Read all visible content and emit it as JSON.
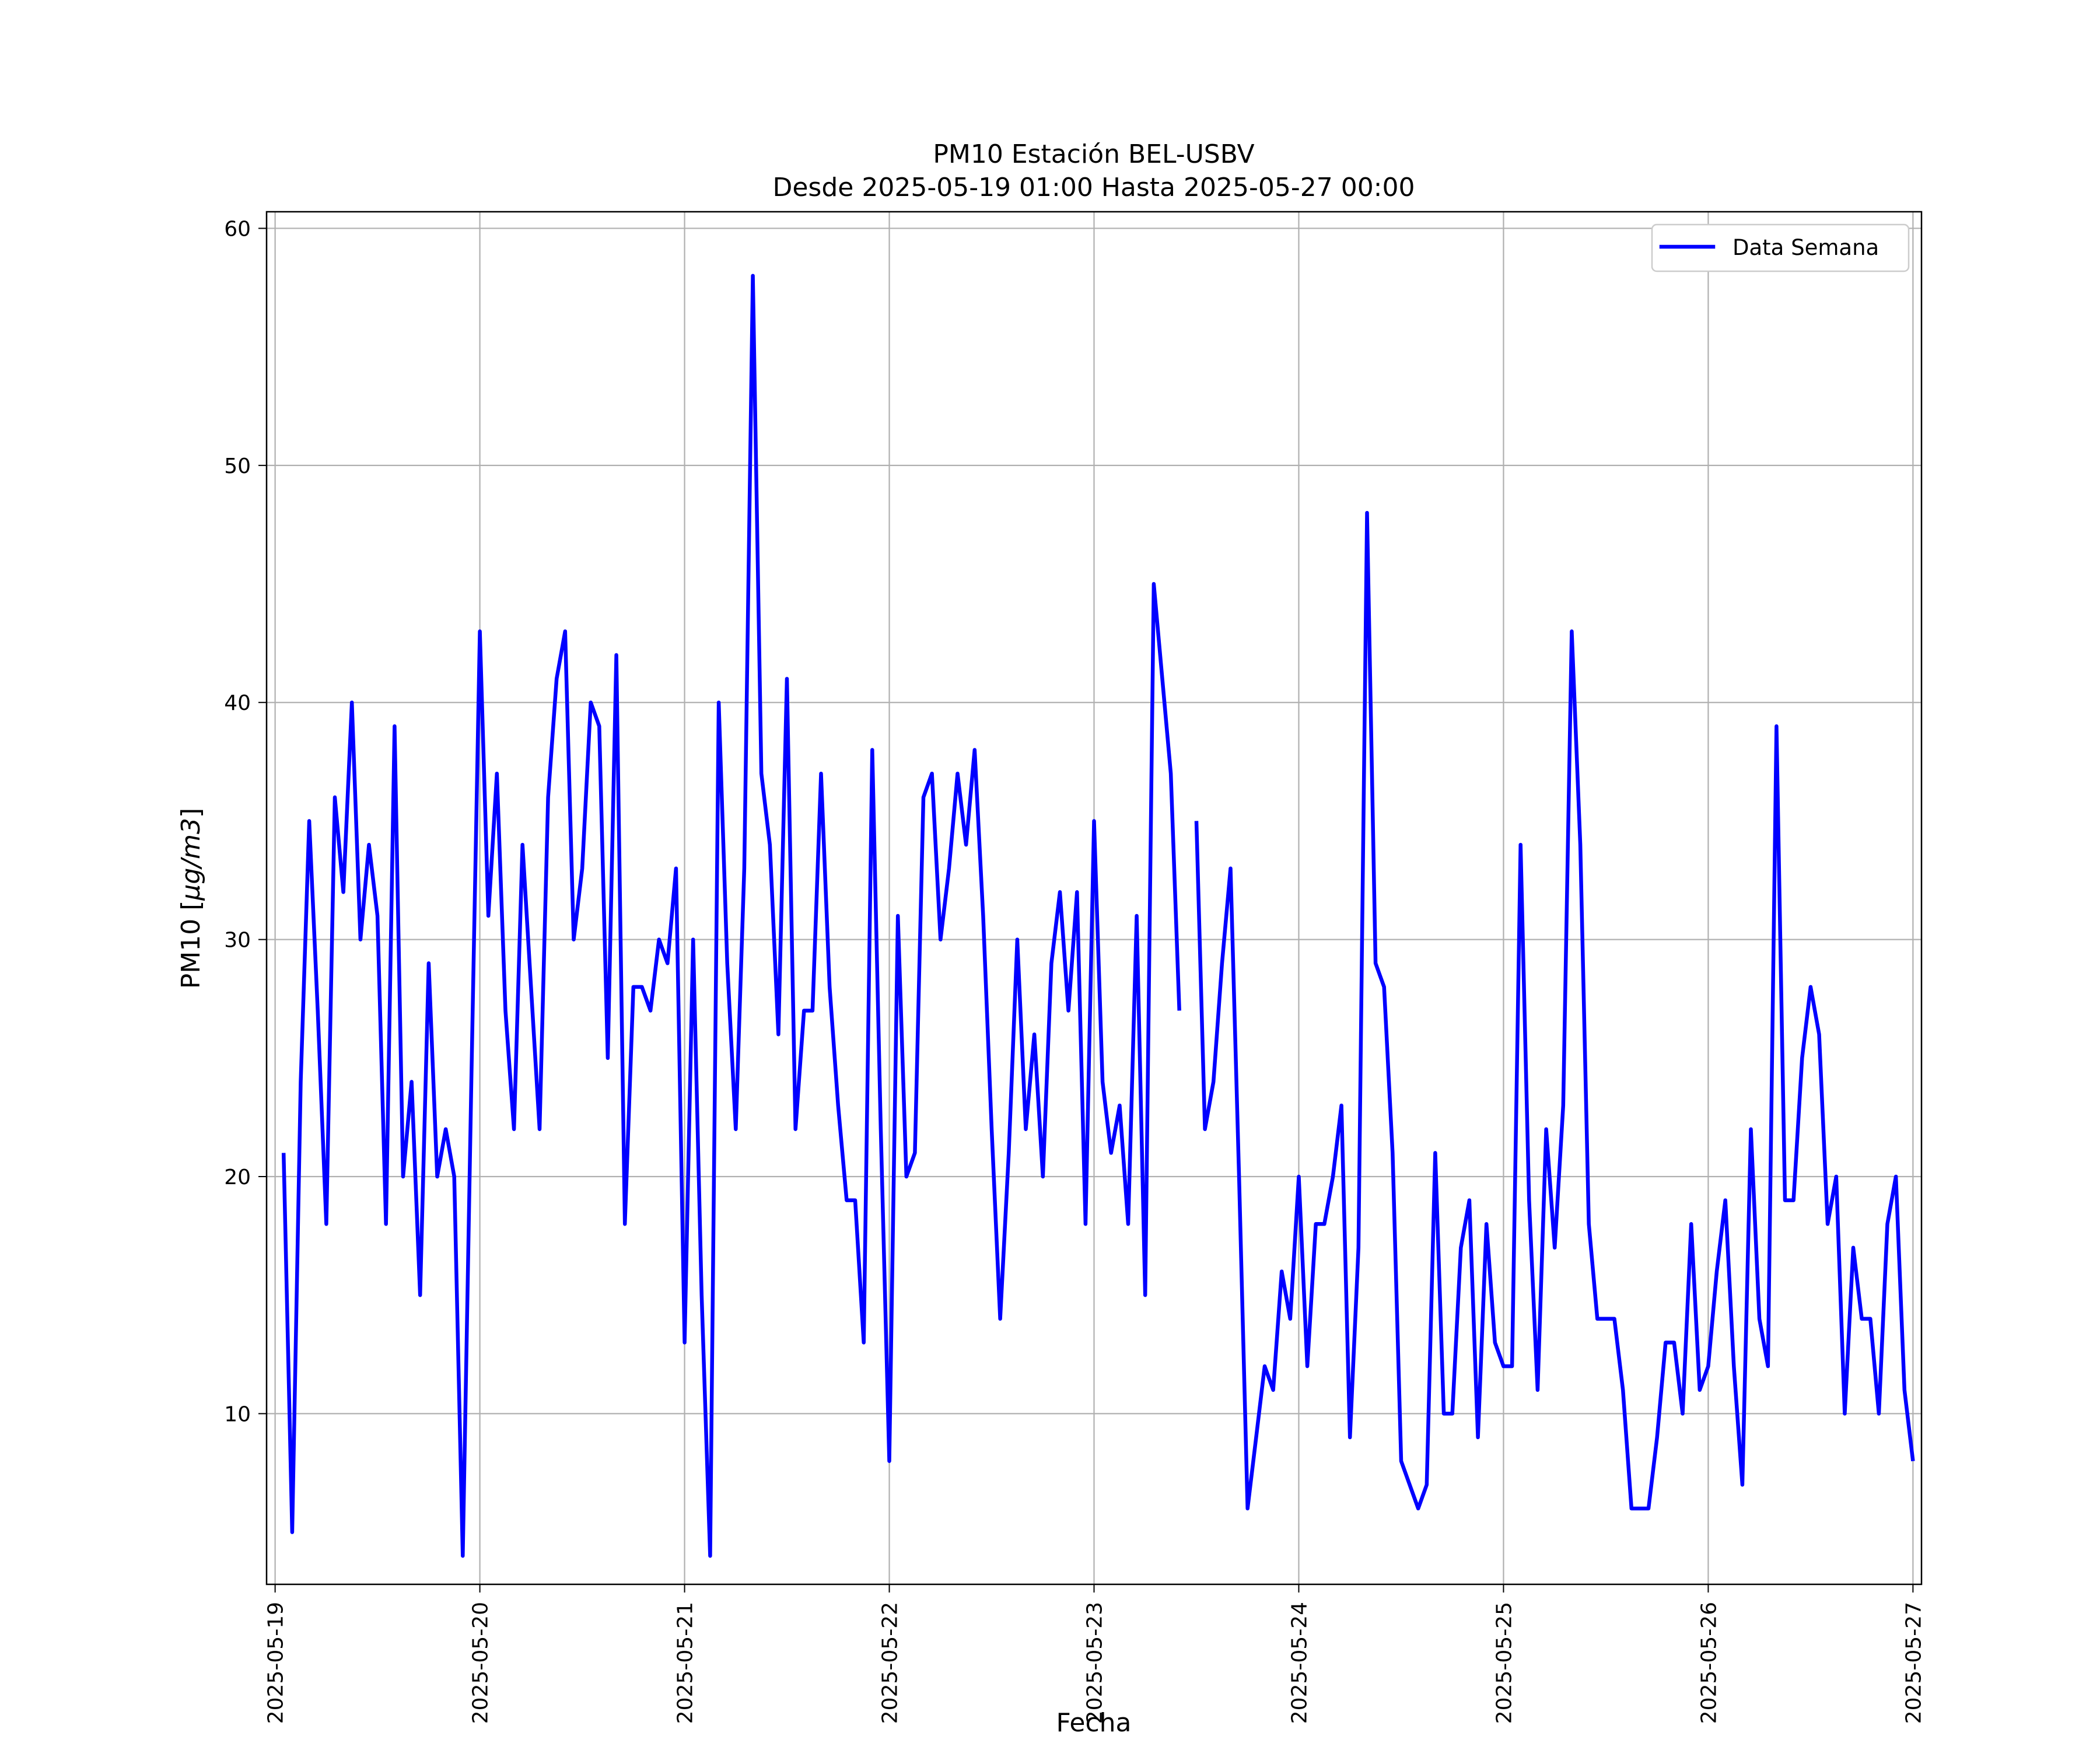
{
  "chart_data": {
    "type": "line",
    "title": "PM10 Estación BEL-USBV",
    "subtitle": "Desde 2025-05-19 01:00 Hasta 2025-05-27 00:00",
    "xlabel": "Fecha",
    "ylabel_prefix": "PM10 [",
    "ylabel_unit": "µg/m3",
    "ylabel_suffix": "]",
    "xlim": [
      "2025-05-18 23:00",
      "2025-05-27 01:00"
    ],
    "ylim": [
      2.8,
      60.7
    ],
    "x_ticks": [
      "2025-05-19",
      "2025-05-20",
      "2025-05-21",
      "2025-05-22",
      "2025-05-23",
      "2025-05-24",
      "2025-05-25",
      "2025-05-26",
      "2025-05-27"
    ],
    "y_ticks": [
      10,
      20,
      30,
      40,
      50,
      60
    ],
    "grid": true,
    "legend_position": "upper right",
    "series": [
      {
        "name": "Data Semana",
        "color": "#0000ff",
        "points": [
          [
            "2025-05-19 01:00",
            21
          ],
          [
            "2025-05-19 02:00",
            5
          ],
          [
            "2025-05-19 03:00",
            24
          ],
          [
            "2025-05-19 04:00",
            35
          ],
          [
            "2025-05-19 05:00",
            27
          ],
          [
            "2025-05-19 06:00",
            18
          ],
          [
            "2025-05-19 07:00",
            36
          ],
          [
            "2025-05-19 08:00",
            32
          ],
          [
            "2025-05-19 09:00",
            40
          ],
          [
            "2025-05-19 10:00",
            30
          ],
          [
            "2025-05-19 11:00",
            34
          ],
          [
            "2025-05-19 12:00",
            31
          ],
          [
            "2025-05-19 13:00",
            18
          ],
          [
            "2025-05-19 14:00",
            39
          ],
          [
            "2025-05-19 15:00",
            20
          ],
          [
            "2025-05-19 16:00",
            24
          ],
          [
            "2025-05-19 17:00",
            15
          ],
          [
            "2025-05-19 18:00",
            29
          ],
          [
            "2025-05-19 19:00",
            20
          ],
          [
            "2025-05-19 20:00",
            22
          ],
          [
            "2025-05-19 21:00",
            20
          ],
          [
            "2025-05-19 22:00",
            4
          ],
          [
            "2025-05-19 23:00",
            24
          ],
          [
            "2025-05-20 00:00",
            43
          ],
          [
            "2025-05-20 01:00",
            31
          ],
          [
            "2025-05-20 02:00",
            37
          ],
          [
            "2025-05-20 03:00",
            27
          ],
          [
            "2025-05-20 04:00",
            22
          ],
          [
            "2025-05-20 05:00",
            34
          ],
          [
            "2025-05-20 06:00",
            28
          ],
          [
            "2025-05-20 07:00",
            22
          ],
          [
            "2025-05-20 08:00",
            36
          ],
          [
            "2025-05-20 09:00",
            41
          ],
          [
            "2025-05-20 10:00",
            43
          ],
          [
            "2025-05-20 11:00",
            30
          ],
          [
            "2025-05-20 12:00",
            33
          ],
          [
            "2025-05-20 13:00",
            40
          ],
          [
            "2025-05-20 14:00",
            39
          ],
          [
            "2025-05-20 15:00",
            25
          ],
          [
            "2025-05-20 16:00",
            42
          ],
          [
            "2025-05-20 17:00",
            18
          ],
          [
            "2025-05-20 18:00",
            28
          ],
          [
            "2025-05-20 19:00",
            28
          ],
          [
            "2025-05-20 20:00",
            27
          ],
          [
            "2025-05-20 21:00",
            30
          ],
          [
            "2025-05-20 22:00",
            29
          ],
          [
            "2025-05-20 23:00",
            33
          ],
          [
            "2025-05-21 00:00",
            13
          ],
          [
            "2025-05-21 01:00",
            30
          ],
          [
            "2025-05-21 02:00",
            15
          ],
          [
            "2025-05-21 03:00",
            4
          ],
          [
            "2025-05-21 04:00",
            40
          ],
          [
            "2025-05-21 05:00",
            29
          ],
          [
            "2025-05-21 06:00",
            22
          ],
          [
            "2025-05-21 07:00",
            33
          ],
          [
            "2025-05-21 08:00",
            58
          ],
          [
            "2025-05-21 09:00",
            37
          ],
          [
            "2025-05-21 10:00",
            34
          ],
          [
            "2025-05-21 11:00",
            26
          ],
          [
            "2025-05-21 12:00",
            41
          ],
          [
            "2025-05-21 13:00",
            22
          ],
          [
            "2025-05-21 14:00",
            27
          ],
          [
            "2025-05-21 15:00",
            27
          ],
          [
            "2025-05-21 16:00",
            37
          ],
          [
            "2025-05-21 17:00",
            28
          ],
          [
            "2025-05-21 18:00",
            23
          ],
          [
            "2025-05-21 19:00",
            19
          ],
          [
            "2025-05-21 20:00",
            19
          ],
          [
            "2025-05-21 21:00",
            13
          ],
          [
            "2025-05-21 22:00",
            38
          ],
          [
            "2025-05-21 23:00",
            22
          ],
          [
            "2025-05-22 00:00",
            8
          ],
          [
            "2025-05-22 01:00",
            31
          ],
          [
            "2025-05-22 02:00",
            20
          ],
          [
            "2025-05-22 03:00",
            21
          ],
          [
            "2025-05-22 04:00",
            36
          ],
          [
            "2025-05-22 05:00",
            37
          ],
          [
            "2025-05-22 06:00",
            30
          ],
          [
            "2025-05-22 07:00",
            33
          ],
          [
            "2025-05-22 08:00",
            37
          ],
          [
            "2025-05-22 09:00",
            34
          ],
          [
            "2025-05-22 10:00",
            38
          ],
          [
            "2025-05-22 11:00",
            31
          ],
          [
            "2025-05-22 12:00",
            22
          ],
          [
            "2025-05-22 13:00",
            14
          ],
          [
            "2025-05-22 14:00",
            21
          ],
          [
            "2025-05-22 15:00",
            30
          ],
          [
            "2025-05-22 16:00",
            22
          ],
          [
            "2025-05-22 17:00",
            26
          ],
          [
            "2025-05-22 18:00",
            20
          ],
          [
            "2025-05-22 19:00",
            29
          ],
          [
            "2025-05-22 20:00",
            32
          ],
          [
            "2025-05-22 21:00",
            27
          ],
          [
            "2025-05-22 22:00",
            32
          ],
          [
            "2025-05-22 23:00",
            18
          ],
          [
            "2025-05-23 00:00",
            35
          ],
          [
            "2025-05-23 01:00",
            24
          ],
          [
            "2025-05-23 02:00",
            21
          ],
          [
            "2025-05-23 03:00",
            23
          ],
          [
            "2025-05-23 04:00",
            18
          ],
          [
            "2025-05-23 05:00",
            31
          ],
          [
            "2025-05-23 06:00",
            15
          ],
          [
            "2025-05-23 07:00",
            45
          ],
          [
            "2025-05-23 08:00",
            41
          ],
          [
            "2025-05-23 09:00",
            37
          ],
          [
            "2025-05-23 10:00",
            27
          ],
          null,
          [
            "2025-05-23 12:00",
            35
          ],
          [
            "2025-05-23 13:00",
            22
          ],
          [
            "2025-05-23 14:00",
            24
          ],
          [
            "2025-05-23 15:00",
            29
          ],
          [
            "2025-05-23 16:00",
            33
          ],
          [
            "2025-05-23 17:00",
            20
          ],
          [
            "2025-05-23 18:00",
            6
          ],
          [
            "2025-05-23 19:00",
            9
          ],
          [
            "2025-05-23 20:00",
            12
          ],
          [
            "2025-05-23 21:00",
            11
          ],
          [
            "2025-05-23 22:00",
            16
          ],
          [
            "2025-05-23 23:00",
            14
          ],
          [
            "2025-05-24 00:00",
            20
          ],
          [
            "2025-05-24 01:00",
            12
          ],
          [
            "2025-05-24 02:00",
            18
          ],
          [
            "2025-05-24 03:00",
            18
          ],
          [
            "2025-05-24 04:00",
            20
          ],
          [
            "2025-05-24 05:00",
            23
          ],
          [
            "2025-05-24 06:00",
            9
          ],
          [
            "2025-05-24 07:00",
            17
          ],
          [
            "2025-05-24 08:00",
            48
          ],
          [
            "2025-05-24 09:00",
            29
          ],
          [
            "2025-05-24 10:00",
            28
          ],
          [
            "2025-05-24 11:00",
            21
          ],
          [
            "2025-05-24 12:00",
            8
          ],
          [
            "2025-05-24 14:00",
            6
          ],
          [
            "2025-05-24 15:00",
            7
          ],
          [
            "2025-05-24 16:00",
            21
          ],
          [
            "2025-05-24 17:00",
            10
          ],
          [
            "2025-05-24 18:00",
            10
          ],
          [
            "2025-05-24 19:00",
            17
          ],
          [
            "2025-05-24 20:00",
            19
          ],
          [
            "2025-05-24 21:00",
            9
          ],
          [
            "2025-05-24 22:00",
            18
          ],
          [
            "2025-05-24 23:00",
            13
          ],
          [
            "2025-05-25 00:00",
            12
          ],
          [
            "2025-05-25 01:00",
            12
          ],
          [
            "2025-05-25 02:00",
            34
          ],
          [
            "2025-05-25 03:00",
            19
          ],
          [
            "2025-05-25 04:00",
            11
          ],
          [
            "2025-05-25 05:00",
            22
          ],
          [
            "2025-05-25 06:00",
            17
          ],
          [
            "2025-05-25 07:00",
            23
          ],
          [
            "2025-05-25 08:00",
            43
          ],
          [
            "2025-05-25 09:00",
            34
          ],
          [
            "2025-05-25 10:00",
            18
          ],
          [
            "2025-05-25 11:00",
            14
          ],
          [
            "2025-05-25 12:00",
            14
          ],
          [
            "2025-05-25 13:00",
            14
          ],
          [
            "2025-05-25 14:00",
            11
          ],
          [
            "2025-05-25 15:00",
            6
          ],
          [
            "2025-05-25 16:00",
            6
          ],
          [
            "2025-05-25 17:00",
            6
          ],
          [
            "2025-05-25 18:00",
            9
          ],
          [
            "2025-05-25 19:00",
            13
          ],
          [
            "2025-05-25 20:00",
            13
          ],
          [
            "2025-05-25 21:00",
            10
          ],
          [
            "2025-05-25 22:00",
            18
          ],
          [
            "2025-05-25 23:00",
            11
          ],
          [
            "2025-05-26 00:00",
            12
          ],
          [
            "2025-05-26 01:00",
            16
          ],
          [
            "2025-05-26 02:00",
            19
          ],
          [
            "2025-05-26 03:00",
            12
          ],
          [
            "2025-05-26 04:00",
            7
          ],
          [
            "2025-05-26 05:00",
            22
          ],
          [
            "2025-05-26 06:00",
            14
          ],
          [
            "2025-05-26 07:00",
            12
          ],
          [
            "2025-05-26 08:00",
            39
          ],
          [
            "2025-05-26 09:00",
            19
          ],
          [
            "2025-05-26 10:00",
            19
          ],
          [
            "2025-05-26 11:00",
            25
          ],
          [
            "2025-05-26 12:00",
            28
          ],
          [
            "2025-05-26 13:00",
            26
          ],
          [
            "2025-05-26 14:00",
            18
          ],
          [
            "2025-05-26 15:00",
            20
          ],
          [
            "2025-05-26 16:00",
            10
          ],
          [
            "2025-05-26 17:00",
            17
          ],
          [
            "2025-05-26 18:00",
            14
          ],
          [
            "2025-05-26 19:00",
            14
          ],
          [
            "2025-05-26 20:00",
            10
          ],
          [
            "2025-05-26 21:00",
            18
          ],
          [
            "2025-05-26 22:00",
            20
          ],
          [
            "2025-05-26 23:00",
            11
          ],
          [
            "2025-05-27 00:00",
            8
          ]
        ]
      }
    ]
  }
}
